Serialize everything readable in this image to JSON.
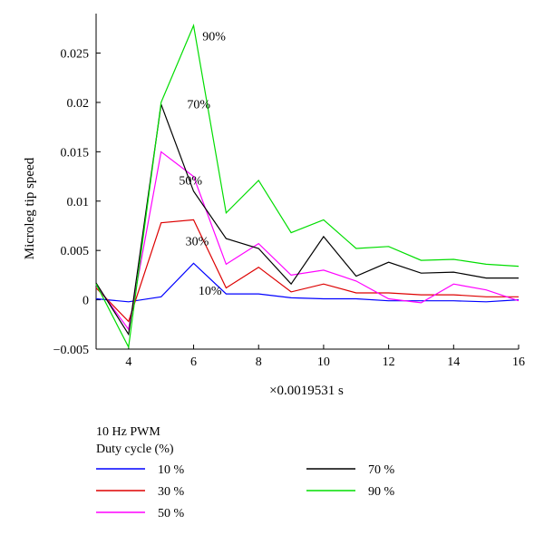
{
  "chart_data": {
    "type": "line",
    "title": "",
    "xlabel": "×0.0019531 s",
    "ylabel": "Microleg tip speed",
    "xlim": [
      3,
      16
    ],
    "ylim": [
      -0.005,
      0.029
    ],
    "xticks": [
      "4",
      "6",
      "8",
      "10",
      "12",
      "14",
      "16"
    ],
    "yticks": [
      "−0.005",
      "0",
      "0.005",
      "0.01",
      "0.015",
      "0.02",
      "0.025"
    ],
    "grid": false,
    "legend": {
      "title_line1": "10 Hz PWM",
      "title_line2": "Duty cycle (%)",
      "placement": "below"
    },
    "x": [
      3,
      4,
      5,
      6,
      7,
      8,
      9,
      10,
      11,
      12,
      13,
      14,
      15,
      16
    ],
    "series": [
      {
        "name": "10 %",
        "color": "#0000ff",
        "annotation": "10%",
        "values": [
          0.0001,
          -0.0002,
          0.0003,
          0.0037,
          0.0006,
          0.0006,
          0.0002,
          0.0001,
          0.0001,
          -0.0001,
          -0.0001,
          -0.0001,
          -0.0002,
          0.0
        ]
      },
      {
        "name": "30 %",
        "color": "#dd0000",
        "annotation": "30%",
        "values": [
          0.0012,
          -0.0022,
          0.0078,
          0.0081,
          0.0012,
          0.0033,
          0.0008,
          0.0016,
          0.0007,
          0.0007,
          0.0005,
          0.0005,
          0.0003,
          0.0003
        ]
      },
      {
        "name": "50 %",
        "color": "#ff00ff",
        "annotation": "50%",
        "values": [
          0.0015,
          -0.003,
          0.015,
          0.0125,
          0.0036,
          0.0057,
          0.0025,
          0.003,
          0.0019,
          0.0001,
          -0.0003,
          0.0016,
          0.001,
          -0.0001
        ]
      },
      {
        "name": "70 %",
        "color": "#000000",
        "annotation": "70%",
        "values": [
          0.0017,
          -0.0035,
          0.0198,
          0.011,
          0.0062,
          0.0052,
          0.0016,
          0.0064,
          0.0024,
          0.0038,
          0.0027,
          0.0028,
          0.0022,
          0.0022
        ]
      },
      {
        "name": "90 %",
        "color": "#00dd00",
        "annotation": "90%",
        "values": [
          0.0016,
          -0.0048,
          0.02,
          0.0278,
          0.0088,
          0.0121,
          0.0068,
          0.0081,
          0.0052,
          0.0054,
          0.004,
          0.0041,
          0.0036,
          0.0034
        ]
      }
    ]
  }
}
